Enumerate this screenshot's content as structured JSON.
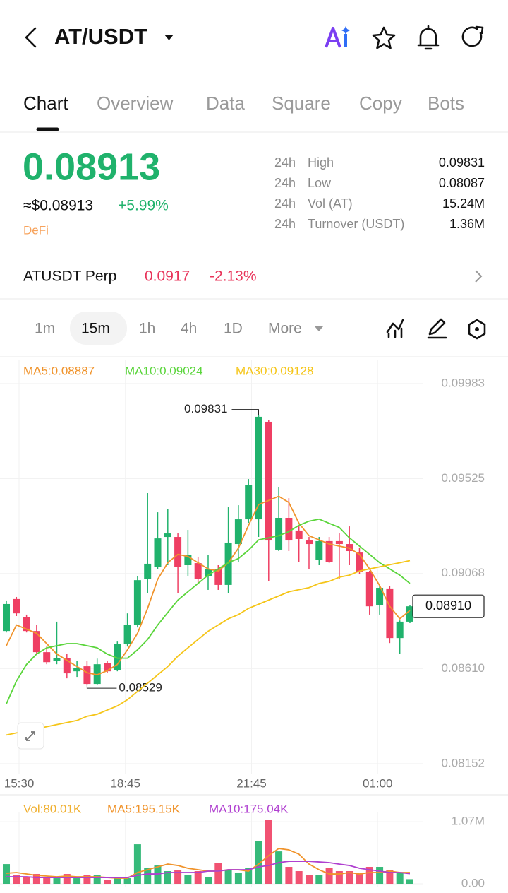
{
  "header": {
    "title": "AT/USDT"
  },
  "tabs": {
    "items": [
      "Chart",
      "Overview",
      "Data",
      "Square",
      "Copy",
      "Bots"
    ],
    "active": 0
  },
  "ticker": {
    "price": "0.08913",
    "usd": "≈$0.08913",
    "change": "+5.99%",
    "tag": "DeFi"
  },
  "stats": [
    {
      "period": "24h",
      "label": "High",
      "value": "0.09831"
    },
    {
      "period": "24h",
      "label": "Low",
      "value": "0.08087"
    },
    {
      "period": "24h",
      "label": "Vol (AT)",
      "value": "15.24M"
    },
    {
      "period": "24h",
      "label": "Turnover (USDT)",
      "value": "1.36M"
    }
  ],
  "perp": {
    "name": "ATUSDT Perp",
    "price": "0.0917",
    "change": "-2.13%"
  },
  "intervals": {
    "items": [
      "1m",
      "15m",
      "1h",
      "4h",
      "1D",
      "More"
    ],
    "active": 1
  },
  "chart_data": [
    {
      "type": "candlestick",
      "up_color": "#20b26c",
      "down_color": "#ef3f63",
      "grid": true,
      "candles": {
        "open": [
          0.08791,
          0.08945,
          0.08859,
          0.08791,
          0.08689,
          0.08648,
          0.08662,
          0.08597,
          0.08621,
          0.08536,
          0.08638,
          0.08604,
          0.08727,
          0.08822,
          0.0904,
          0.09101,
          0.09244,
          0.09244,
          0.09108,
          0.09118,
          0.09057,
          0.09088,
          0.09013,
          0.0921,
          0.09329,
          0.09329,
          0.09799,
          0.09183,
          0.09336,
          0.09275,
          0.09227,
          0.09132,
          0.09224,
          0.09224,
          0.0921,
          0.09169,
          0.09074,
          0.08917,
          0.08996,
          0.08757,
          0.08836
        ],
        "high": [
          0.08938,
          0.08955,
          0.0887,
          0.08819,
          0.08716,
          0.08836,
          0.08682,
          0.08648,
          0.08648,
          0.08658,
          0.08648,
          0.0874,
          0.08876,
          0.09057,
          0.09455,
          0.09363,
          0.0938,
          0.09261,
          0.09278,
          0.09149,
          0.09159,
          0.09108,
          0.09387,
          0.09397,
          0.09523,
          0.09831,
          0.09806,
          0.09483,
          0.09431,
          0.09295,
          0.09244,
          0.09244,
          0.09244,
          0.09261,
          0.09295,
          0.09193,
          0.09081,
          0.09013,
          0.09006,
          0.08842,
          0.08917
        ],
        "low": [
          0.08784,
          0.08863,
          0.08784,
          0.08682,
          0.08631,
          0.08631,
          0.08563,
          0.0857,
          0.08529,
          0.08532,
          0.0859,
          0.08597,
          0.08716,
          0.08808,
          0.08972,
          0.09091,
          0.09108,
          0.08972,
          0.09057,
          0.09023,
          0.08989,
          0.08989,
          0.08972,
          0.09125,
          0.09312,
          0.09244,
          0.0903,
          0.09176,
          0.09176,
          0.09125,
          0.09091,
          0.09108,
          0.09118,
          0.0904,
          0.09108,
          0.09067,
          0.0887,
          0.0887,
          0.08733,
          0.08682,
          0.08829
        ],
        "close": [
          0.08921,
          0.08876,
          0.08791,
          0.08689,
          0.08641,
          0.08662,
          0.08587,
          0.08614,
          0.08536,
          0.08631,
          0.08597,
          0.08727,
          0.08822,
          0.09036,
          0.09115,
          0.09237,
          0.09261,
          0.09101,
          0.09159,
          0.0904,
          0.09091,
          0.09013,
          0.09217,
          0.09329,
          0.09496,
          0.09823,
          0.09227,
          0.09336,
          0.09227,
          0.09234,
          0.0921,
          0.09224,
          0.09125,
          0.0921,
          0.09176,
          0.09074,
          0.0891,
          0.08999,
          0.08757,
          0.08836,
          0.0891
        ]
      },
      "series": [
        {
          "name": "MA5:0.08887",
          "color": "#f0932b",
          "values": [
            0.0872,
            0.0882,
            0.088,
            0.0878,
            0.0873,
            0.0868,
            0.0865,
            0.0862,
            0.0859,
            0.0858,
            0.086,
            0.0863,
            0.087,
            0.0878,
            0.089,
            0.0904,
            0.0912,
            0.0916,
            0.0915,
            0.0912,
            0.0909,
            0.0908,
            0.0912,
            0.0919,
            0.093,
            0.094,
            0.0942,
            0.0944,
            0.0941,
            0.0931,
            0.0925,
            0.0923,
            0.0921,
            0.092,
            0.0919,
            0.0916,
            0.0909,
            0.0901,
            0.0891,
            0.0885,
            0.0889
          ]
        },
        {
          "name": "MA10:0.09024",
          "color": "#5ad53b",
          "values": [
            0.0844,
            0.0855,
            0.0863,
            0.0868,
            0.0871,
            0.0872,
            0.0873,
            0.0873,
            0.0872,
            0.0871,
            0.0868,
            0.0866,
            0.0866,
            0.087,
            0.0875,
            0.0882,
            0.0888,
            0.0894,
            0.0898,
            0.0902,
            0.0906,
            0.0909,
            0.0912,
            0.0914,
            0.0918,
            0.0923,
            0.0924,
            0.0925,
            0.0927,
            0.093,
            0.0932,
            0.0933,
            0.0931,
            0.0929,
            0.0924,
            0.092,
            0.0916,
            0.0912,
            0.0909,
            0.0906,
            0.0902
          ]
        },
        {
          "name": "MA30:0.09128",
          "color": "#f5c518",
          "values": [
            0.0829,
            0.083,
            0.0831,
            0.0832,
            0.0833,
            0.0834,
            0.0835,
            0.0836,
            0.0838,
            0.0839,
            0.0841,
            0.0843,
            0.0846,
            0.085,
            0.0854,
            0.0858,
            0.0862,
            0.0867,
            0.0871,
            0.0875,
            0.0879,
            0.0882,
            0.0885,
            0.0887,
            0.089,
            0.0892,
            0.0894,
            0.0896,
            0.0898,
            0.0899,
            0.09,
            0.0902,
            0.0903,
            0.0905,
            0.0906,
            0.0908,
            0.0909,
            0.091,
            0.0911,
            0.0912,
            0.0913
          ]
        }
      ],
      "price_line": {
        "value": 0.0891,
        "label": "0.08910"
      },
      "xlim": [
        -0.63,
        41.33
      ],
      "xticks": [
        {
          "value": 1.26,
          "label": "15:30"
        },
        {
          "value": 11.8,
          "label": "18:45"
        },
        {
          "value": 24.3,
          "label": "21:45"
        },
        {
          "value": 36.8,
          "label": "01:00"
        }
      ],
      "ylim": [
        0.08104,
        0.10095
      ],
      "yticks": [
        0.09983,
        0.09525,
        0.09068,
        {
          "value": 0.0861,
          "label": "0.08610"
        },
        0.08152
      ]
    },
    {
      "type": "bar",
      "name": "Vol:80.01K",
      "color": "#f0b030",
      "values": [
        340000,
        146000,
        122000,
        170000,
        122000,
        97000,
        170000,
        97000,
        146000,
        146000,
        73000,
        97000,
        97000,
        681000,
        268000,
        316000,
        219000,
        243000,
        146000,
        219000,
        122000,
        365000,
        243000,
        195000,
        268000,
        742000,
        1106000,
        559000,
        292000,
        219000,
        146000,
        146000,
        268000,
        219000,
        219000,
        170000,
        292000,
        292000,
        243000,
        195000,
        80010
      ],
      "series": [
        {
          "name": "MA5:195.15K",
          "color": "#f0932b",
          "values": [
            182000,
            195000,
            170000,
            146000,
            134000,
            122000,
            134000,
            122000,
            122000,
            122000,
            109000,
            97000,
            97000,
            195000,
            243000,
            292000,
            340000,
            316000,
            268000,
            243000,
            219000,
            219000,
            243000,
            243000,
            219000,
            340000,
            486000,
            608000,
            584000,
            511000,
            340000,
            243000,
            170000,
            170000,
            195000,
            170000,
            195000,
            195000,
            219000,
            195000,
            195150
          ]
        },
        {
          "name": "MA10:175.04K",
          "color": "#b040d0",
          "values": [
            122000,
            122000,
            122000,
            109000,
            109000,
            109000,
            109000,
            109000,
            109000,
            109000,
            109000,
            109000,
            109000,
            146000,
            170000,
            170000,
            195000,
            195000,
            195000,
            195000,
            219000,
            219000,
            243000,
            243000,
            243000,
            292000,
            316000,
            365000,
            389000,
            389000,
            389000,
            377000,
            365000,
            340000,
            316000,
            268000,
            243000,
            219000,
            195000,
            195000,
            175040
          ]
        }
      ],
      "ylim": [
        0,
        1230000
      ],
      "yticks": [
        {
          "value": 1070000,
          "label": "1.07M"
        },
        {
          "value": 0,
          "label": "0.00"
        }
      ]
    }
  ]
}
